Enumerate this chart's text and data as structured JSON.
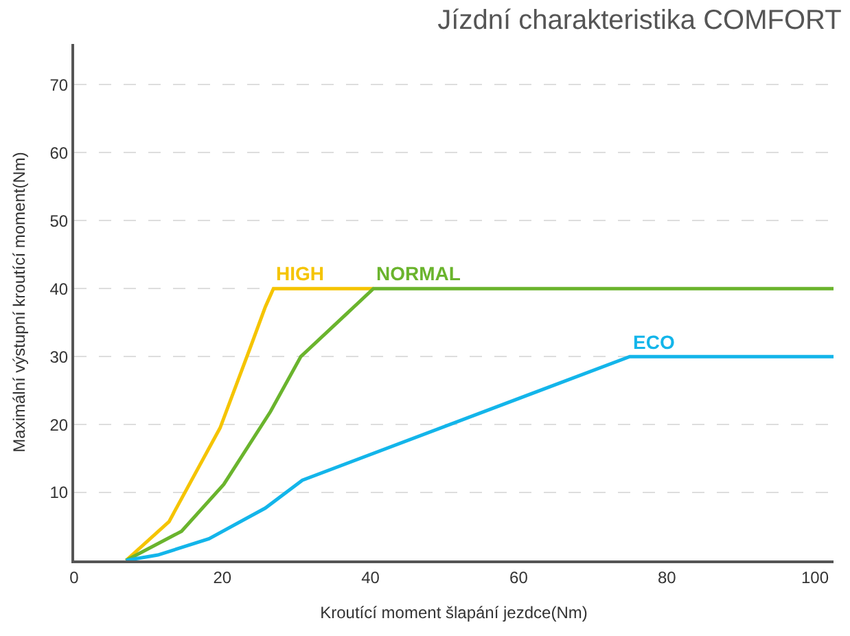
{
  "chart_data": {
    "type": "line",
    "title": "Jízdní charakteristika COMFORT",
    "xlabel": "Kroutící moment šlapání jezdce(Nm)",
    "ylabel": "Maximální výstupní kroutící moment(Nm)",
    "xlim": [
      0,
      102.5
    ],
    "ylim": [
      0,
      76
    ],
    "xticks": [
      0,
      20,
      40,
      60,
      80,
      100
    ],
    "yticks": [
      10,
      20,
      30,
      40,
      50,
      60,
      70
    ],
    "grid": "y",
    "legend": false,
    "marker": "none",
    "line_style": "solid",
    "series": [
      {
        "name": "HIGH",
        "color": "#f5c400",
        "x": [
          7,
          12.8,
          19.7,
          23.6,
          25.8,
          26.9,
          40.4
        ],
        "values": [
          0,
          5.7,
          19.5,
          30.8,
          37.3,
          40,
          40
        ]
      },
      {
        "name": "NORMAL",
        "color": "#6ab42d",
        "x": [
          7,
          14.5,
          20.2,
          26.5,
          30.6,
          40.4,
          102.5
        ],
        "values": [
          0,
          4.3,
          11.2,
          21.9,
          30,
          40,
          40
        ]
      },
      {
        "name": "ECO",
        "color": "#13b5ea",
        "x": [
          7,
          11.3,
          18.2,
          25.8,
          30.8,
          75,
          102.5
        ],
        "values": [
          0,
          0.8,
          3.2,
          7.7,
          11.8,
          30,
          30
        ]
      }
    ]
  }
}
